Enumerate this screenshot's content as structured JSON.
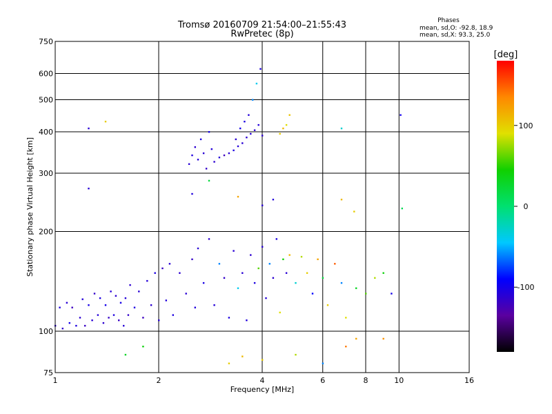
{
  "chart_data": {
    "type": "scatter",
    "title": "Tromsø 20160709 21:54:00–21:55:43",
    "subtitle": "RwPretec (8p)",
    "stats": {
      "heading": "Phases",
      "line1": "mean, sd,O: -92.8, 18.9",
      "line2": "mean, sd,X:  93.3, 25.0"
    },
    "xlabel": "Frequency [MHz]",
    "ylabel": "Stationary phase Virtual Height [km]",
    "xscale": "log",
    "yscale": "log",
    "xlim": [
      1,
      16
    ],
    "ylim": [
      75,
      750
    ],
    "xticks": [
      1,
      2,
      4,
      6,
      8,
      10,
      16
    ],
    "xtick_labels": [
      "1",
      "2",
      "4",
      "6",
      "8",
      "10",
      "16"
    ],
    "yticks": [
      75,
      100,
      200,
      300,
      400,
      500,
      600,
      750
    ],
    "ytick_labels": [
      "75",
      "100",
      "200",
      "300",
      "400",
      "500",
      "600",
      "750"
    ],
    "grid": true,
    "colorbar": {
      "label": "[deg]",
      "min": -180,
      "max": 180,
      "ticks": [
        -100,
        0,
        100
      ],
      "tick_labels": [
        "-100",
        "0",
        "100"
      ],
      "colors": [
        "#000000",
        "#5a00a0",
        "#0000ff",
        "#00c8ff",
        "#00e070",
        "#10d000",
        "#e0e000",
        "#ff8800",
        "#ff0000"
      ]
    },
    "points": [
      [
        1.0,
        104,
        -110
      ],
      [
        1.03,
        118,
        -105
      ],
      [
        1.05,
        102,
        -115
      ],
      [
        1.08,
        122,
        -110
      ],
      [
        1.1,
        106,
        -100
      ],
      [
        1.12,
        118,
        -120
      ],
      [
        1.15,
        104,
        -105
      ],
      [
        1.18,
        110,
        -112
      ],
      [
        1.2,
        125,
        -108
      ],
      [
        1.22,
        104,
        -118
      ],
      [
        1.25,
        120,
        -102
      ],
      [
        1.28,
        108,
        -110
      ],
      [
        1.3,
        130,
        -115
      ],
      [
        1.33,
        112,
        -108
      ],
      [
        1.35,
        126,
        -104
      ],
      [
        1.38,
        106,
        -112
      ],
      [
        1.4,
        120,
        -100
      ],
      [
        1.43,
        110,
        -116
      ],
      [
        1.45,
        132,
        -110
      ],
      [
        1.48,
        112,
        -105
      ],
      [
        1.5,
        128,
        -112
      ],
      [
        1.53,
        108,
        -118
      ],
      [
        1.55,
        122,
        -102
      ],
      [
        1.58,
        104,
        -110
      ],
      [
        1.6,
        126,
        -108
      ],
      [
        1.63,
        112,
        -115
      ],
      [
        1.65,
        138,
        -112
      ],
      [
        1.7,
        118,
        -104
      ],
      [
        1.75,
        132,
        -110
      ],
      [
        1.8,
        110,
        -120
      ],
      [
        1.85,
        142,
        -108
      ],
      [
        1.9,
        120,
        -112
      ],
      [
        1.95,
        150,
        -104
      ],
      [
        2.0,
        108,
        -110
      ],
      [
        2.05,
        155,
        -118
      ],
      [
        2.1,
        124,
        -106
      ],
      [
        2.15,
        160,
        -110
      ],
      [
        2.2,
        112,
        -104
      ],
      [
        2.3,
        150,
        -112
      ],
      [
        2.4,
        130,
        -110
      ],
      [
        2.5,
        165,
        -116
      ],
      [
        2.55,
        118,
        -106
      ],
      [
        2.6,
        178,
        -110
      ],
      [
        2.7,
        140,
        -102
      ],
      [
        2.8,
        190,
        -112
      ],
      [
        2.9,
        120,
        -108
      ],
      [
        3.0,
        160,
        -60
      ],
      [
        3.1,
        145,
        -115
      ],
      [
        3.2,
        110,
        -104
      ],
      [
        3.3,
        175,
        -110
      ],
      [
        3.4,
        135,
        -40
      ],
      [
        3.5,
        150,
        -110
      ],
      [
        3.6,
        108,
        -106
      ],
      [
        3.7,
        170,
        -112
      ],
      [
        3.8,
        140,
        -104
      ],
      [
        3.9,
        155,
        60
      ],
      [
        4.0,
        180,
        -110
      ],
      [
        4.1,
        126,
        -108
      ],
      [
        4.2,
        160,
        -60
      ],
      [
        4.3,
        145,
        -112
      ],
      [
        4.4,
        190,
        -104
      ],
      [
        4.5,
        114,
        90
      ],
      [
        4.6,
        165,
        40
      ],
      [
        4.7,
        150,
        -110
      ],
      [
        4.8,
        170,
        110
      ],
      [
        5.0,
        140,
        -30
      ],
      [
        5.2,
        168,
        80
      ],
      [
        5.4,
        150,
        100
      ],
      [
        5.6,
        130,
        -90
      ],
      [
        5.8,
        165,
        120
      ],
      [
        6.0,
        145,
        20
      ],
      [
        6.2,
        120,
        100
      ],
      [
        6.5,
        160,
        150
      ],
      [
        6.8,
        140,
        -60
      ],
      [
        7.0,
        110,
        90
      ],
      [
        7.5,
        135,
        30
      ],
      [
        8.0,
        130,
        60
      ],
      [
        8.5,
        145,
        80
      ],
      [
        9.0,
        150,
        40
      ],
      [
        9.5,
        130,
        -100
      ],
      [
        2.45,
        320,
        -110
      ],
      [
        2.5,
        340,
        -105
      ],
      [
        2.55,
        360,
        -112
      ],
      [
        2.6,
        330,
        -108
      ],
      [
        2.65,
        380,
        -104
      ],
      [
        2.7,
        345,
        -110
      ],
      [
        2.75,
        310,
        -115
      ],
      [
        2.8,
        400,
        -100
      ],
      [
        2.85,
        355,
        -108
      ],
      [
        2.9,
        325,
        -112
      ],
      [
        3.0,
        335,
        -108
      ],
      [
        3.1,
        340,
        -120
      ],
      [
        3.2,
        345,
        -110
      ],
      [
        3.3,
        352,
        -104
      ],
      [
        3.35,
        380,
        -112
      ],
      [
        3.4,
        362,
        -108
      ],
      [
        3.45,
        410,
        -100
      ],
      [
        3.5,
        370,
        -110
      ],
      [
        3.55,
        430,
        -104
      ],
      [
        3.6,
        385,
        -112
      ],
      [
        3.65,
        450,
        -108
      ],
      [
        3.7,
        395,
        -110
      ],
      [
        3.75,
        500,
        -60
      ],
      [
        3.8,
        405,
        -110
      ],
      [
        3.85,
        560,
        -40
      ],
      [
        3.9,
        420,
        -108
      ],
      [
        3.95,
        620,
        -104
      ],
      [
        4.0,
        390,
        -112
      ],
      [
        4.5,
        395,
        100
      ],
      [
        4.6,
        410,
        110
      ],
      [
        4.7,
        420,
        90
      ],
      [
        4.8,
        450,
        105
      ],
      [
        1.25,
        410,
        -110
      ],
      [
        1.4,
        430,
        100
      ],
      [
        6.8,
        410,
        -30
      ],
      [
        10.1,
        450,
        -100
      ],
      [
        1.25,
        270,
        -110
      ],
      [
        2.5,
        260,
        -106
      ],
      [
        2.8,
        285,
        20
      ],
      [
        4.0,
        240,
        -110
      ],
      [
        4.3,
        250,
        -108
      ],
      [
        6.8,
        250,
        110
      ],
      [
        7.4,
        230,
        100
      ],
      [
        10.2,
        235,
        10
      ],
      [
        3.4,
        255,
        120
      ],
      [
        1.6,
        85,
        30
      ],
      [
        1.8,
        90,
        40
      ],
      [
        3.2,
        80,
        100
      ],
      [
        3.5,
        84,
        110
      ],
      [
        4.0,
        82,
        100
      ],
      [
        5.0,
        85,
        80
      ],
      [
        6.0,
        80,
        -60
      ],
      [
        7.0,
        90,
        140
      ],
      [
        7.5,
        95,
        120
      ],
      [
        9.0,
        95,
        130
      ]
    ]
  }
}
